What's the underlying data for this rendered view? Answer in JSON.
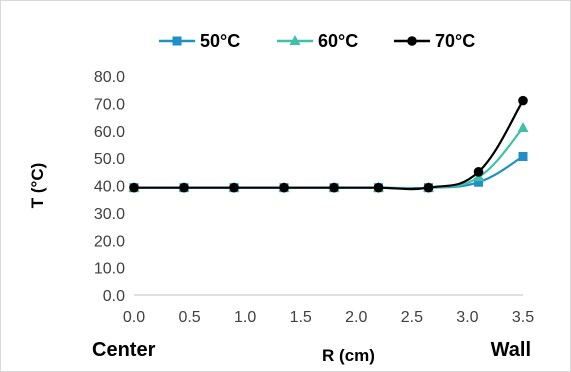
{
  "chart_data": {
    "type": "line",
    "title": "",
    "xlabel": "R (cm)",
    "ylabel": "T (°C)",
    "xlim": [
      0.0,
      3.5
    ],
    "ylim": [
      0.0,
      80.0
    ],
    "x_ticks": [
      "0.0",
      "0.5",
      "1.0",
      "1.5",
      "2.0",
      "2.5",
      "3.0",
      "3.5"
    ],
    "y_ticks": [
      "0.0",
      "10.0",
      "20.0",
      "30.0",
      "40.0",
      "50.0",
      "60.0",
      "70.0",
      "80.0"
    ],
    "grid": false,
    "legend_position": "top",
    "annotations": {
      "left": "Center",
      "right": "Wall"
    },
    "x": [
      0.0,
      0.45,
      0.9,
      1.35,
      1.8,
      2.2,
      2.65,
      3.1,
      3.5
    ],
    "series": [
      {
        "name": "50°C",
        "color": "#1f8fc6",
        "marker": "square",
        "values": [
          39.2,
          39.2,
          39.2,
          39.2,
          39.2,
          39.2,
          39.2,
          41.2,
          50.6
        ]
      },
      {
        "name": "60°C",
        "color": "#40c0a8",
        "marker": "triangle",
        "values": [
          39.2,
          39.2,
          39.2,
          39.2,
          39.2,
          39.2,
          39.2,
          43.0,
          61.0
        ]
      },
      {
        "name": "70°C",
        "color": "#000000",
        "marker": "circle",
        "values": [
          39.2,
          39.2,
          39.2,
          39.2,
          39.2,
          39.2,
          39.2,
          45.0,
          71.0
        ]
      }
    ]
  }
}
